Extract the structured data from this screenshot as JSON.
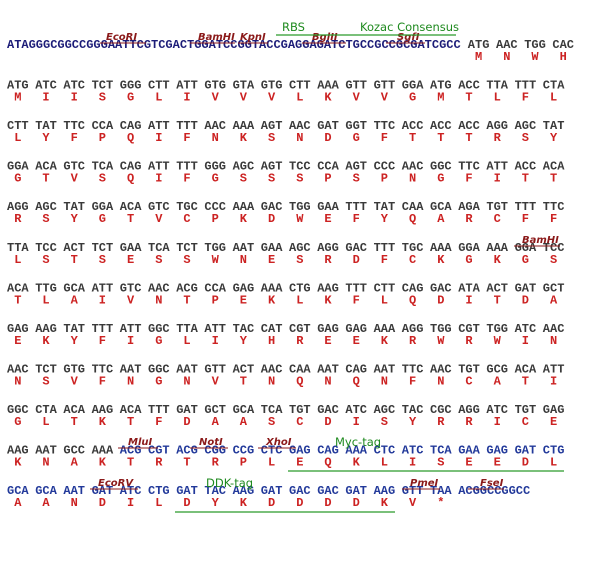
{
  "lines": [
    {
      "prefix": "ATAGGGCGGCCGGGAATTCGTCGACTGGATCCGGTACCGAGGAGATCTGCCGCCGCGATCGCC",
      "codons": [
        "ATG",
        "AAC",
        "TGG",
        "CAC"
      ],
      "aa": [
        "M",
        "N",
        "W",
        "H"
      ]
    },
    {
      "codons": [
        "ATG",
        "ATC",
        "ATC",
        "TCT",
        "GGG",
        "CTT",
        "ATT",
        "GTG",
        "GTA",
        "GTG",
        "CTT",
        "AAA",
        "GTT",
        "GTT",
        "GGA",
        "ATG",
        "ACC",
        "TTA",
        "TTT",
        "CTA"
      ],
      "aa": [
        "M",
        "I",
        "I",
        "S",
        "G",
        "L",
        "I",
        "V",
        "V",
        "V",
        "L",
        "K",
        "V",
        "V",
        "G",
        "M",
        "T",
        "L",
        "F",
        "L"
      ]
    },
    {
      "codons": [
        "CTT",
        "TAT",
        "TTC",
        "CCA",
        "CAG",
        "ATT",
        "TTT",
        "AAC",
        "AAA",
        "AGT",
        "AAC",
        "GAT",
        "GGT",
        "TTC",
        "ACC",
        "ACC",
        "ACC",
        "AGG",
        "AGC",
        "TAT"
      ],
      "aa": [
        "L",
        "Y",
        "F",
        "P",
        "Q",
        "I",
        "F",
        "N",
        "K",
        "S",
        "N",
        "D",
        "G",
        "F",
        "T",
        "T",
        "T",
        "R",
        "S",
        "Y"
      ]
    },
    {
      "codons": [
        "GGA",
        "ACA",
        "GTC",
        "TCA",
        "CAG",
        "ATT",
        "TTT",
        "GGG",
        "AGC",
        "AGT",
        "TCC",
        "CCA",
        "AGT",
        "CCC",
        "AAC",
        "GGC",
        "TTC",
        "ATT",
        "ACC",
        "ACA"
      ],
      "aa": [
        "G",
        "T",
        "V",
        "S",
        "Q",
        "I",
        "F",
        "G",
        "S",
        "S",
        "S",
        "P",
        "S",
        "P",
        "N",
        "G",
        "F",
        "I",
        "T",
        "T"
      ]
    },
    {
      "codons": [
        "AGG",
        "AGC",
        "TAT",
        "GGA",
        "ACA",
        "GTC",
        "TGC",
        "CCC",
        "AAA",
        "GAC",
        "TGG",
        "GAA",
        "TTT",
        "TAT",
        "CAA",
        "GCA",
        "AGA",
        "TGT",
        "TTT",
        "TTC"
      ],
      "aa": [
        "R",
        "S",
        "Y",
        "G",
        "T",
        "V",
        "C",
        "P",
        "K",
        "D",
        "W",
        "E",
        "F",
        "Y",
        "Q",
        "A",
        "R",
        "C",
        "F",
        "F"
      ]
    },
    {
      "codons": [
        "TTA",
        "TCC",
        "ACT",
        "TCT",
        "GAA",
        "TCA",
        "TCT",
        "TGG",
        "AAT",
        "GAA",
        "AGC",
        "AGG",
        "GAC",
        "TTT",
        "TGC",
        "AAA",
        "GGA",
        "AAA",
        "GGA",
        "TCC"
      ],
      "aa": [
        "L",
        "S",
        "T",
        "S",
        "E",
        "S",
        "S",
        "W",
        "N",
        "E",
        "S",
        "R",
        "D",
        "F",
        "C",
        "K",
        "G",
        "K",
        "G",
        "S"
      ]
    },
    {
      "codons": [
        "ACA",
        "TTG",
        "GCA",
        "ATT",
        "GTC",
        "AAC",
        "ACG",
        "CCA",
        "GAG",
        "AAA",
        "CTG",
        "AAG",
        "TTT",
        "CTT",
        "CAG",
        "GAC",
        "ATA",
        "ACT",
        "GAT",
        "GCT"
      ],
      "aa": [
        "T",
        "L",
        "A",
        "I",
        "V",
        "N",
        "T",
        "P",
        "E",
        "K",
        "L",
        "K",
        "F",
        "L",
        "Q",
        "D",
        "I",
        "T",
        "D",
        "A"
      ]
    },
    {
      "codons": [
        "GAG",
        "AAG",
        "TAT",
        "TTT",
        "ATT",
        "GGC",
        "TTA",
        "ATT",
        "TAC",
        "CAT",
        "CGT",
        "GAG",
        "GAG",
        "AAA",
        "AGG",
        "TGG",
        "CGT",
        "TGG",
        "ATC",
        "AAC"
      ],
      "aa": [
        "E",
        "K",
        "Y",
        "F",
        "I",
        "G",
        "L",
        "I",
        "Y",
        "H",
        "R",
        "E",
        "E",
        "K",
        "R",
        "W",
        "R",
        "W",
        "I",
        "N"
      ]
    },
    {
      "codons": [
        "AAC",
        "TCT",
        "GTG",
        "TTC",
        "AAT",
        "GGC",
        "AAT",
        "GTT",
        "ACT",
        "AAC",
        "CAA",
        "AAT",
        "CAG",
        "AAT",
        "TTC",
        "AAC",
        "TGT",
        "GCG",
        "ACA",
        "ATT"
      ],
      "aa": [
        "N",
        "S",
        "V",
        "F",
        "N",
        "G",
        "N",
        "V",
        "T",
        "N",
        "Q",
        "N",
        "Q",
        "N",
        "F",
        "N",
        "C",
        "A",
        "T",
        "I"
      ]
    },
    {
      "codons": [
        "GGC",
        "CTA",
        "ACA",
        "AAG",
        "ACA",
        "TTT",
        "GAT",
        "GCT",
        "GCA",
        "TCA",
        "TGT",
        "GAC",
        "ATC",
        "AGC",
        "TAC",
        "CGC",
        "AGG",
        "ATC",
        "TGT",
        "GAG"
      ],
      "aa": [
        "G",
        "L",
        "T",
        "K",
        "T",
        "F",
        "D",
        "A",
        "A",
        "S",
        "C",
        "D",
        "I",
        "S",
        "Y",
        "R",
        "R",
        "I",
        "C",
        "E"
      ]
    },
    {
      "codons": [
        "AAG",
        "AAT",
        "GCC",
        "AAA",
        "ACG",
        "CGT",
        "ACG",
        "CGG",
        "CCG",
        "CTC",
        "GAG",
        "CAG",
        "AAA",
        "CTC",
        "ATC",
        "TCA",
        "GAA",
        "GAG",
        "GAT",
        "CTG"
      ],
      "aa": [
        "K",
        "N",
        "A",
        "K",
        "T",
        "R",
        "T",
        "R",
        "P",
        "L",
        "E",
        "Q",
        "K",
        "L",
        "I",
        "S",
        "E",
        "E",
        "D",
        "L"
      ]
    },
    {
      "codons": [
        "GCA",
        "GCA",
        "AAT",
        "GAT",
        "ATC",
        "CTG",
        "GAT",
        "TAC",
        "AAG",
        "GAT",
        "GAC",
        "GAC",
        "GAT",
        "AAG",
        "GTT",
        "TAA"
      ],
      "tail": "ACGGCCGGCC",
      "aa": [
        "A",
        "A",
        "N",
        "D",
        "I",
        "L",
        "D",
        "Y",
        "K",
        "D",
        "D",
        "D",
        "D",
        "K",
        "V",
        "*"
      ]
    }
  ],
  "sites": [
    "EcoRI",
    "BamHI",
    "KpnI",
    "BglII",
    "SgfI",
    "BamHI",
    "MluI",
    "NotI",
    "XhoI",
    "EcoRV",
    "PmeI",
    "FseI"
  ],
  "features": [
    "RBS",
    "Kozac Consensus",
    "Myc-tag",
    "DDK-tag"
  ]
}
